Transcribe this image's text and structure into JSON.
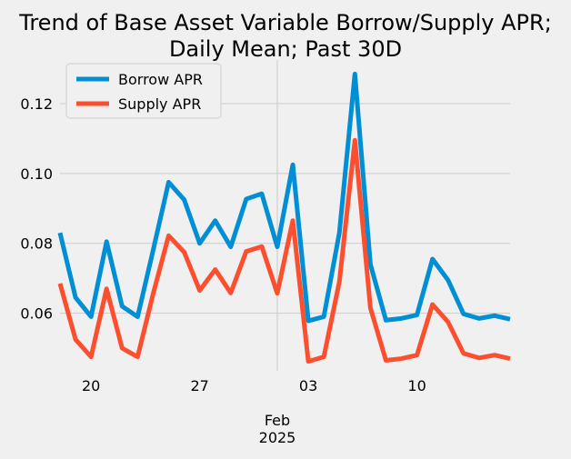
{
  "chart_data": {
    "type": "line",
    "title": "Trend of Base Asset Variable Borrow/Supply APR;",
    "subtitle": "Daily Mean; Past 30D",
    "xlabel": "",
    "ylabel": "",
    "x": [
      "2025-01-18",
      "2025-01-19",
      "2025-01-20",
      "2025-01-21",
      "2025-01-22",
      "2025-01-23",
      "2025-01-24",
      "2025-01-25",
      "2025-01-26",
      "2025-01-27",
      "2025-01-28",
      "2025-01-29",
      "2025-01-30",
      "2025-01-31",
      "2025-02-01",
      "2025-02-02",
      "2025-02-03",
      "2025-02-04",
      "2025-02-05",
      "2025-02-06",
      "2025-02-07",
      "2025-02-08",
      "2025-02-09",
      "2025-02-10",
      "2025-02-11",
      "2025-02-12",
      "2025-02-13",
      "2025-02-14",
      "2025-02-15",
      "2025-02-16"
    ],
    "xlim": [
      "2025-01-18",
      "2025-02-16"
    ],
    "ylim": [
      0.0435,
      0.1325
    ],
    "x_ticks": [
      {
        "date": "2025-01-20",
        "label": "20"
      },
      {
        "date": "2025-01-27",
        "label": "27"
      },
      {
        "date": "2025-02-03",
        "label": "03"
      },
      {
        "date": "2025-02-10",
        "label": "10"
      }
    ],
    "x_secondary_label": {
      "date": "2025-02-01",
      "month": "Feb",
      "year": "2025"
    },
    "y_ticks": [
      {
        "value": 0.06,
        "label": "0.06"
      },
      {
        "value": 0.08,
        "label": "0.08"
      },
      {
        "value": 0.1,
        "label": "0.10"
      },
      {
        "value": 0.12,
        "label": "0.12"
      }
    ],
    "grid": true,
    "legend": {
      "position": "top-left"
    },
    "series": [
      {
        "name": "Borrow APR",
        "color": "#008fd5",
        "values": [
          0.083,
          0.0645,
          0.059,
          0.0805,
          0.062,
          0.059,
          0.078,
          0.0975,
          0.0925,
          0.08,
          0.0865,
          0.079,
          0.0927,
          0.0942,
          0.079,
          0.1025,
          0.0578,
          0.059,
          0.083,
          0.1285,
          0.074,
          0.058,
          0.0585,
          0.0595,
          0.0755,
          0.0695,
          0.0598,
          0.0585,
          0.0593,
          0.0583
        ]
      },
      {
        "name": "Supply APR",
        "color": "#fc4f30",
        "values": [
          0.0685,
          0.0525,
          0.0475,
          0.067,
          0.05,
          0.0475,
          0.0655,
          0.0822,
          0.0775,
          0.0665,
          0.0725,
          0.0658,
          0.0777,
          0.0791,
          0.0657,
          0.0865,
          0.0462,
          0.0475,
          0.069,
          0.1095,
          0.0615,
          0.0465,
          0.047,
          0.048,
          0.0625,
          0.0575,
          0.0485,
          0.0472,
          0.048,
          0.047
        ]
      }
    ]
  }
}
